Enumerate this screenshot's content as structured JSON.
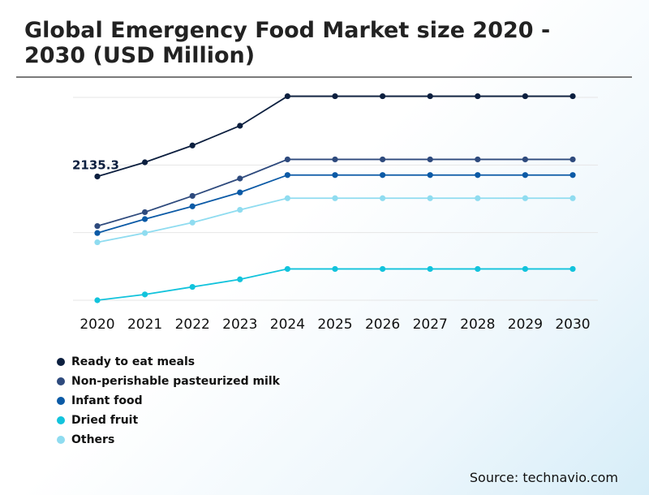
{
  "title": "Global Emergency Food Market size 2020 - 2030 (USD Million)",
  "source": "Source: technavio.com",
  "chart_data": {
    "type": "line",
    "title": "Global Emergency Food Market size 2020 - 2030 (USD Million)",
    "x": [
      "2020",
      "2021",
      "2022",
      "2023",
      "2024",
      "2025",
      "2026",
      "2027",
      "2028",
      "2029",
      "2030"
    ],
    "ylim": [
      0,
      3500
    ],
    "grid": true,
    "legend_position": "bottom-left",
    "annotations": [
      {
        "series": "Ready to eat meals",
        "x": "2020",
        "text": "2135.3"
      }
    ],
    "series": [
      {
        "name": "Ready to eat meals",
        "color": "#0c1f3f",
        "values": [
          2135.3,
          2380,
          2670,
          3010,
          3520,
          3520,
          3520,
          3520,
          3520,
          3520,
          3520
        ]
      },
      {
        "name": "Non-perishable pasteurized milk",
        "color": "#2e4a7d",
        "values": [
          1280,
          1520,
          1800,
          2100,
          2430,
          2430,
          2430,
          2430,
          2430,
          2430,
          2430
        ]
      },
      {
        "name": "Infant food",
        "color": "#0b5aa6",
        "values": [
          1160,
          1400,
          1620,
          1860,
          2160,
          2160,
          2160,
          2160,
          2160,
          2160,
          2160
        ]
      },
      {
        "name": "Dried fruit",
        "color": "#12c3dc",
        "values": [
          0,
          100,
          230,
          360,
          540,
          540,
          540,
          540,
          540,
          540,
          540
        ]
      },
      {
        "name": "Others",
        "color": "#8fdcf0",
        "values": [
          1000,
          1160,
          1340,
          1560,
          1760,
          1760,
          1760,
          1760,
          1760,
          1760,
          1760
        ]
      }
    ],
    "legend_order": [
      "Ready to eat meals",
      "Non-perishable pasteurized milk",
      "Infant food",
      "Dried fruit",
      "Others"
    ]
  }
}
